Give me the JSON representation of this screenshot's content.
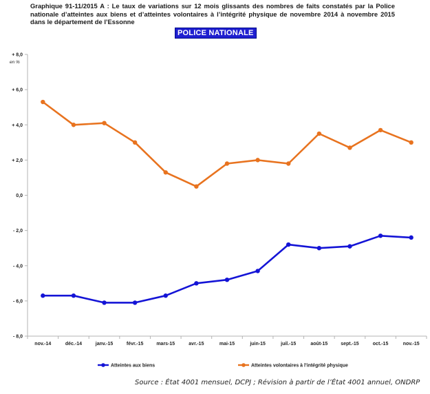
{
  "title": "Graphique 91-11/2015 A : Le taux de variations sur 12 mois glissants des nombres de faits constatés par la Police nationale d’atteintes aux biens et d’atteintes volontaires à l’intégrité physique de novembre 2014 à novembre 2015 dans le département de l’Essonne",
  "badge": "POLICE NATIONALE",
  "unit_label": "en %",
  "source": "Source : État 4001 mensuel, DCPJ ; Révision à partir de l’État 4001 annuel, ONDRP",
  "colors": {
    "orange": "#e8731f",
    "blue": "#1414d6",
    "axis": "#b3b3b3"
  },
  "chart_data": {
    "type": "line",
    "categories": [
      "nov.-14",
      "déc.-14",
      "janv.-15",
      "févr.-15",
      "mars-15",
      "avr.-15",
      "mai-15",
      "juin-15",
      "juil.-15",
      "août-15",
      "sept.-15",
      "oct.-15",
      "nov.-15"
    ],
    "ylim": [
      -8.0,
      8.0
    ],
    "yticks": [
      "+ 8,0",
      "+ 6,0",
      "+ 4,0",
      "+ 2,0",
      "0,0",
      "- 2,0",
      "- 4,0",
      "- 6,0",
      "- 8,0"
    ],
    "ytick_values": [
      8,
      6,
      4,
      2,
      0,
      -2,
      -4,
      -6,
      -8
    ],
    "grid": false,
    "legend_position": "bottom",
    "series": [
      {
        "name": "Atteintes aux biens",
        "color": "#1414d6",
        "values": [
          -5.7,
          -5.7,
          -6.1,
          -6.1,
          -5.7,
          -5.0,
          -4.8,
          -4.3,
          -2.8,
          -3.0,
          -2.9,
          -2.3,
          -2.4
        ]
      },
      {
        "name": "Atteintes volontaires à l'intégrité physique",
        "color": "#e8731f",
        "values": [
          5.3,
          4.0,
          4.1,
          3.0,
          1.3,
          0.5,
          1.8,
          2.0,
          1.8,
          3.5,
          2.7,
          3.7,
          3.0
        ]
      }
    ]
  }
}
